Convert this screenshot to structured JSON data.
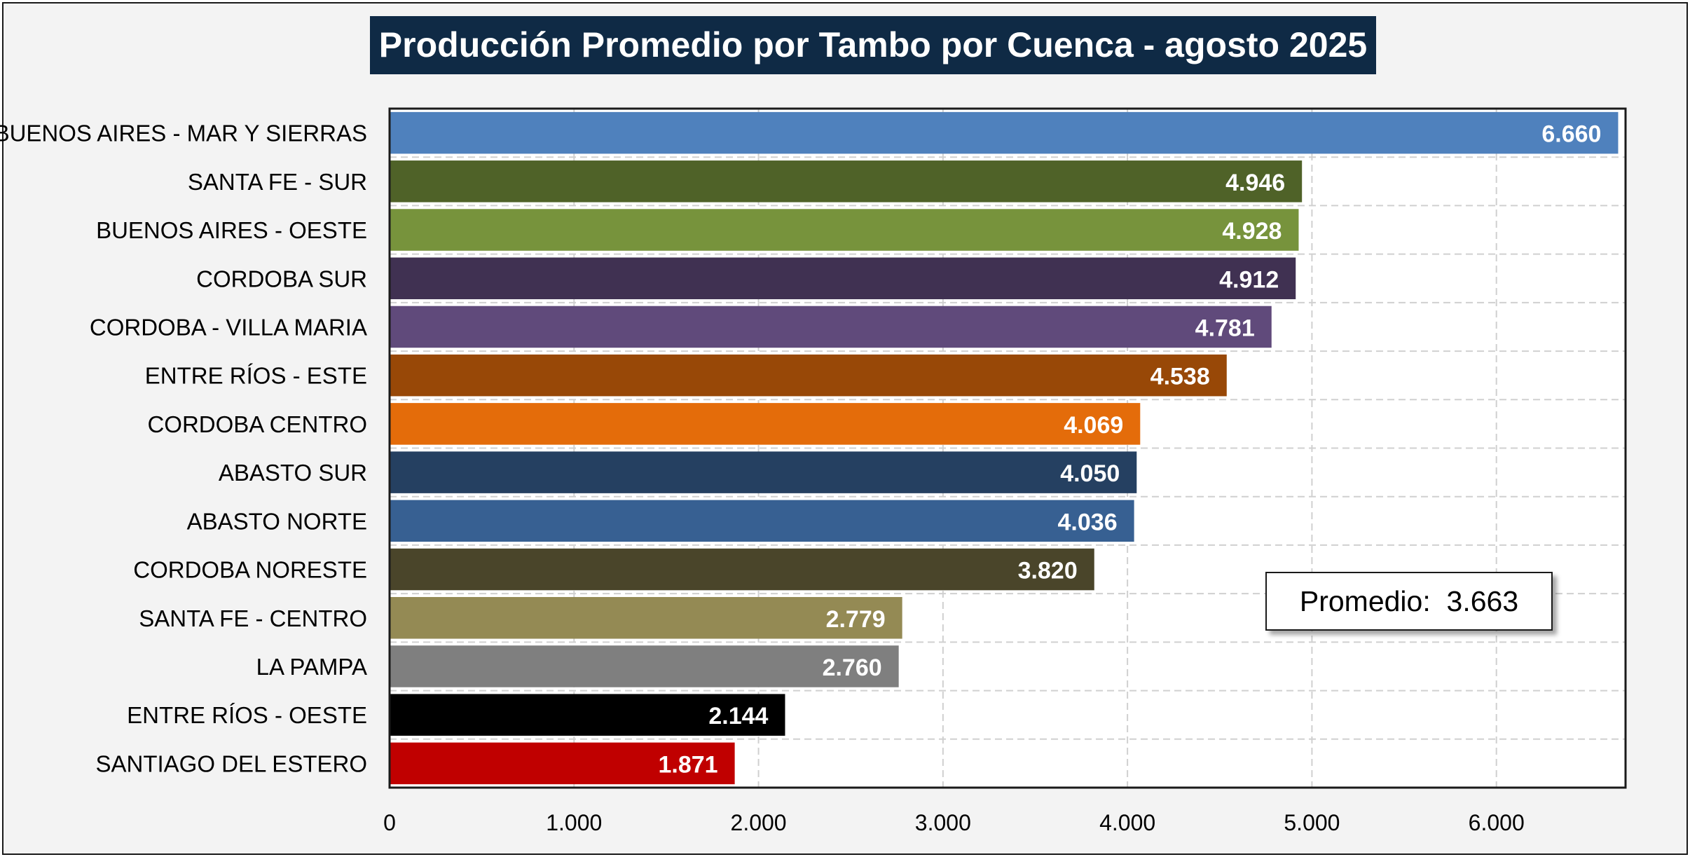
{
  "chart_data": {
    "type": "bar",
    "orientation": "horizontal",
    "title": "Producción Promedio por Tambo por Cuenca - agosto 2025",
    "categories": [
      "BUENOS AIRES - MAR Y SIERRAS",
      "SANTA FE - SUR",
      "BUENOS AIRES - OESTE",
      "CORDOBA SUR",
      "CORDOBA - VILLA MARIA",
      "ENTRE RÍOS - ESTE",
      "CORDOBA CENTRO",
      "ABASTO SUR",
      "ABASTO NORTE",
      "CORDOBA NORESTE",
      "SANTA FE - CENTRO",
      "LA PAMPA",
      "ENTRE RÍOS - OESTE",
      "SANTIAGO DEL ESTERO"
    ],
    "values": [
      6660,
      4946,
      4928,
      4912,
      4781,
      4538,
      4069,
      4050,
      4036,
      3820,
      2779,
      2760,
      2144,
      1871
    ],
    "value_labels": [
      "6.660",
      "4.946",
      "4.928",
      "4.912",
      "4.781",
      "4.538",
      "4.069",
      "4.050",
      "4.036",
      "3.820",
      "2.779",
      "2.760",
      "2.144",
      "1.871"
    ],
    "bar_colors": [
      "#4f81bd",
      "#4f6228",
      "#77933c",
      "#403152",
      "#604a7b",
      "#984807",
      "#e46c0a",
      "#254061",
      "#376092",
      "#4a452a",
      "#948a54",
      "#7f7f7f",
      "#000000",
      "#c00000"
    ],
    "xlim": [
      0,
      6700
    ],
    "x_ticks": [
      0,
      1000,
      2000,
      3000,
      4000,
      5000,
      6000
    ],
    "x_tick_labels": [
      "0",
      "1.000",
      "2.000",
      "3.000",
      "4.000",
      "5.000",
      "6.000"
    ],
    "grid": true,
    "xlabel": "",
    "ylabel": "",
    "annotation": {
      "label": "Promedio:",
      "value": "3.663"
    }
  },
  "colors": {
    "title_bg": "#0f2a45",
    "title_text": "#ffffff",
    "frame_bg": "#f3f3f3",
    "plot_bg": "#ffffff",
    "gridline": "#d0d0d0"
  }
}
